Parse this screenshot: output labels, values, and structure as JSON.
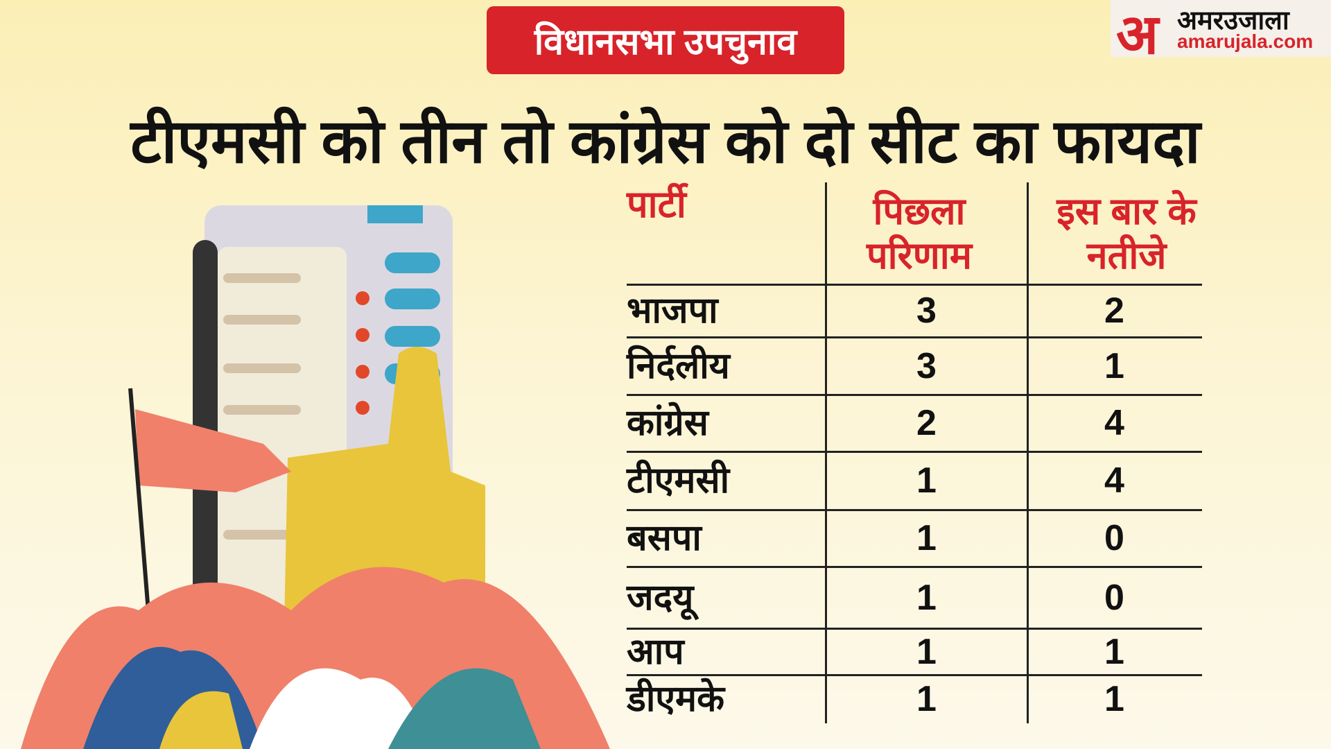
{
  "header": {
    "tag": "विधानसभा उपचुनाव",
    "title": "टीएमसी को तीन तो कांग्रेस को दो सीट का फायदा",
    "logo": {
      "mark": "अ",
      "name": "अमरउजाला",
      "url": "amarujala.com"
    }
  },
  "table": {
    "columns": [
      "पार्टी",
      "पिछला परिणाम",
      "इस बार के नतीजे"
    ],
    "rows": [
      [
        "भाजपा",
        3,
        2
      ],
      [
        "निर्दलीय",
        3,
        1
      ],
      [
        "कांग्रेस",
        2,
        4
      ],
      [
        "टीएमसी",
        1,
        4
      ],
      [
        "बसपा",
        1,
        0
      ],
      [
        "जदयू",
        1,
        0
      ],
      [
        "आप",
        1,
        1
      ],
      [
        "डीएमके",
        1,
        1
      ]
    ]
  }
}
